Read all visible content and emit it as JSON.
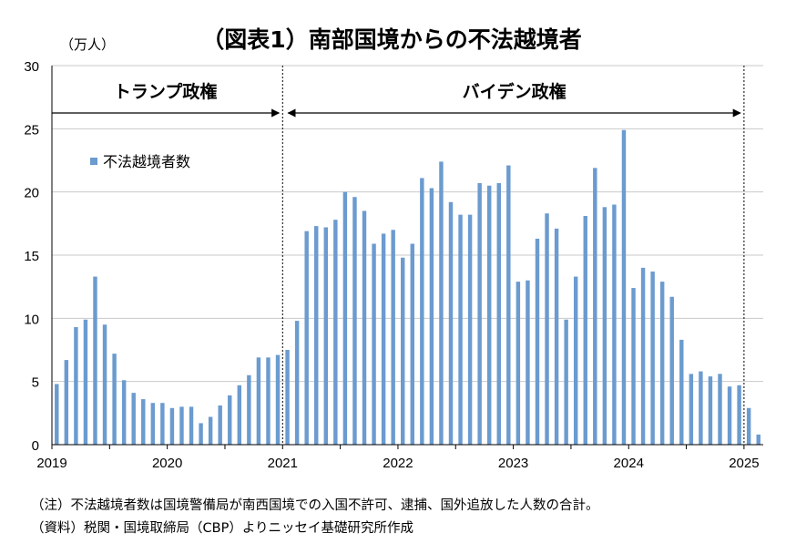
{
  "chart_data": {
    "type": "bar",
    "title": "（図表1）南部国境からの不法越境者",
    "y_unit": "（万人）",
    "ylim": [
      0,
      30
    ],
    "yticks": [
      0,
      5,
      10,
      15,
      20,
      25,
      30
    ],
    "grid": true,
    "legend_position": "top-left",
    "series": [
      {
        "name": "不法越境者数",
        "color": "#6b9bcf",
        "values": [
          4.8,
          6.7,
          9.3,
          9.9,
          13.3,
          9.5,
          7.2,
          5.1,
          4.1,
          3.6,
          3.3,
          3.3,
          2.9,
          3.0,
          3.0,
          1.7,
          2.2,
          3.1,
          3.9,
          4.7,
          5.5,
          6.9,
          6.9,
          7.1,
          7.5,
          9.8,
          16.9,
          17.3,
          17.2,
          17.8,
          20.0,
          19.6,
          18.5,
          15.9,
          16.7,
          17.0,
          14.8,
          15.9,
          21.1,
          20.3,
          22.4,
          19.2,
          18.2,
          18.2,
          20.7,
          20.5,
          20.7,
          22.1,
          12.9,
          13.0,
          16.3,
          18.3,
          17.1,
          9.9,
          13.3,
          18.1,
          21.9,
          18.8,
          19.0,
          24.9,
          12.4,
          14.0,
          13.7,
          12.9,
          11.7,
          8.3,
          5.6,
          5.8,
          5.4,
          5.6,
          4.6,
          4.7,
          2.9,
          0.8
        ]
      }
    ],
    "x_tick_labels": [
      "2019",
      "2020",
      "2021",
      "2022",
      "2023",
      "2024",
      "2025"
    ],
    "annotations": [
      {
        "label": "トランプ政権",
        "from_month": 0,
        "to_month": 24
      },
      {
        "label": "バイデン政権",
        "from_month": 24,
        "to_month": 72
      }
    ]
  },
  "notes": [
    "（注）不法越境者数は国境警備局が南西国境での入国不許可、逮捕、国外追放した人数の合計。",
    "（資料）税関・国境取締局（CBP）よりニッセイ基礎研究所作成"
  ]
}
